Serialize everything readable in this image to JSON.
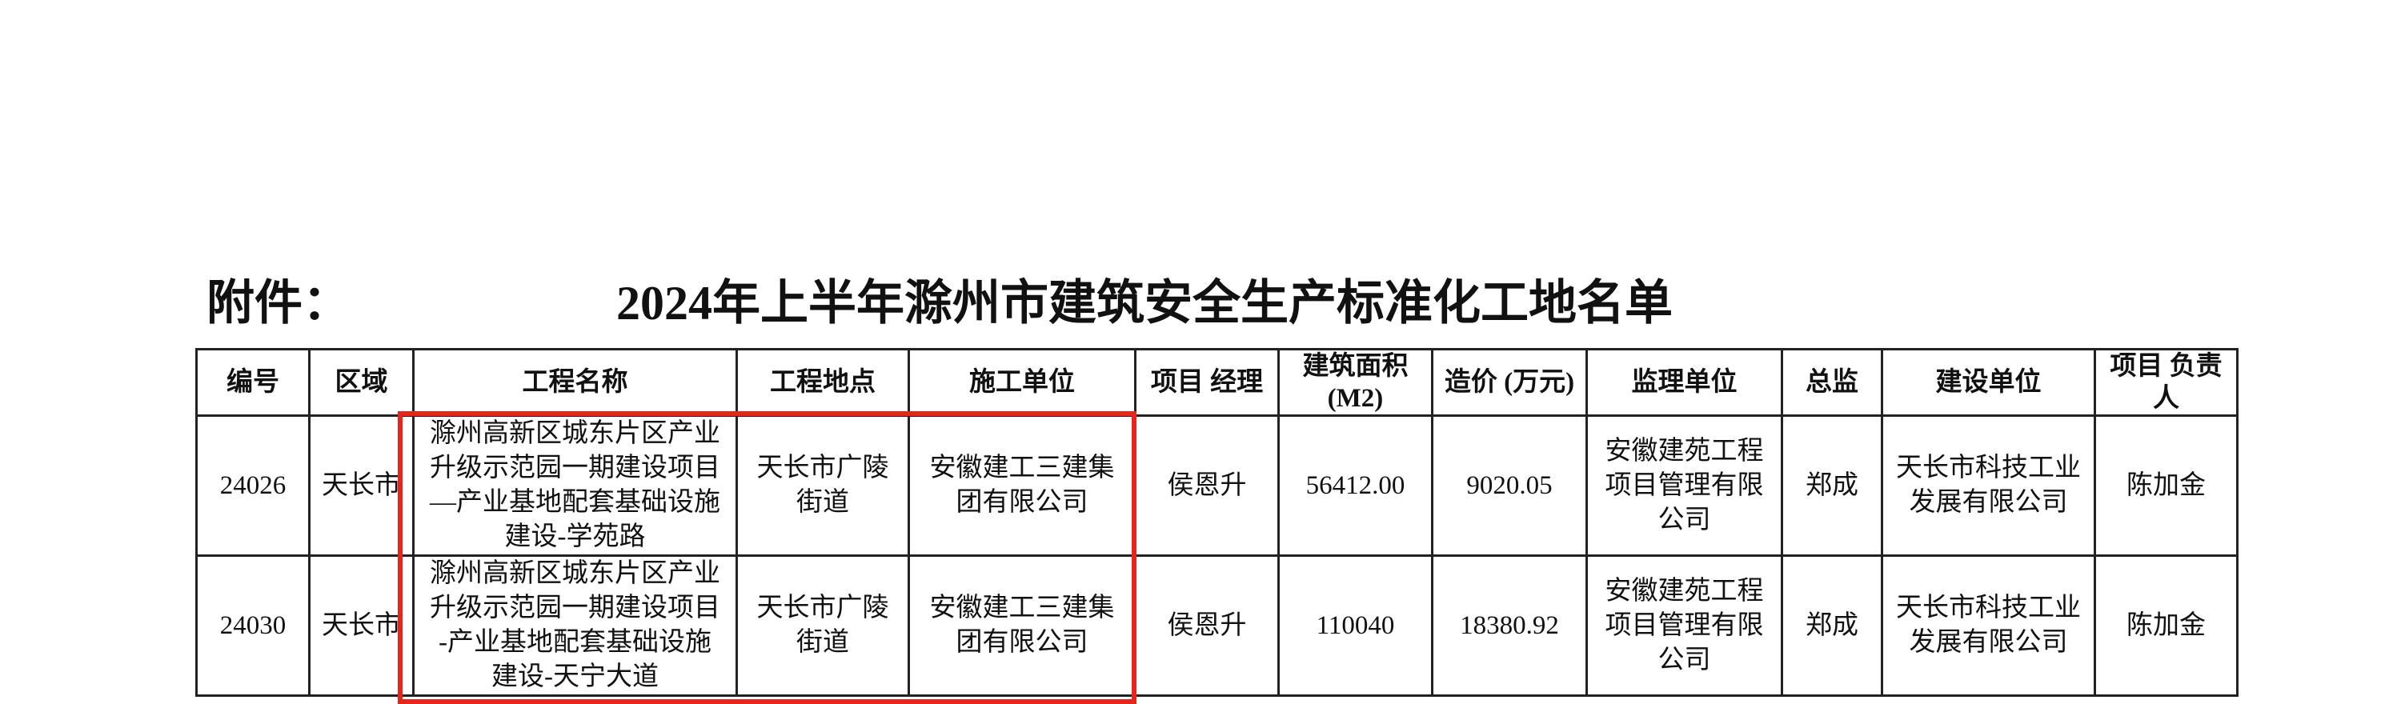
{
  "attachment_label": "附件：",
  "title": "2024年上半年滁州市建筑安全生产标准化工地名单",
  "highlight_color": "#e8251b",
  "table": {
    "headers": [
      "编号",
      "区域",
      "工程名称",
      "工程地点",
      "施工单位",
      "项目\n经理",
      "建筑面积\n(M2)",
      "造价\n(万元)",
      "监理单位",
      "总监",
      "建设单位",
      "项目\n负责人"
    ],
    "rows": [
      [
        "24026",
        "天长市",
        "滁州高新区城东片区产业\n升级示范园一期建设项目\n—产业基地配套基础设施\n建设-学苑路",
        "天长市广陵\n街道",
        "安徽建工三建集\n团有限公司",
        "侯恩升",
        "56412.00",
        "9020.05",
        "安徽建苑工程\n项目管理有限\n公司",
        "郑成",
        "天长市科技工业\n发展有限公司",
        "陈加金"
      ],
      [
        "24030",
        "天长市",
        "滁州高新区城东片区产业\n升级示范园一期建设项目\n-产业基地配套基础设施\n建设-天宁大道",
        "天长市广陵\n街道",
        "安徽建工三建集\n团有限公司",
        "侯恩升",
        "110040",
        "18380.92",
        "安徽建苑工程\n项目管理有限\n公司",
        "郑成",
        "天长市科技工业\n发展有限公司",
        "陈加金"
      ]
    ]
  }
}
